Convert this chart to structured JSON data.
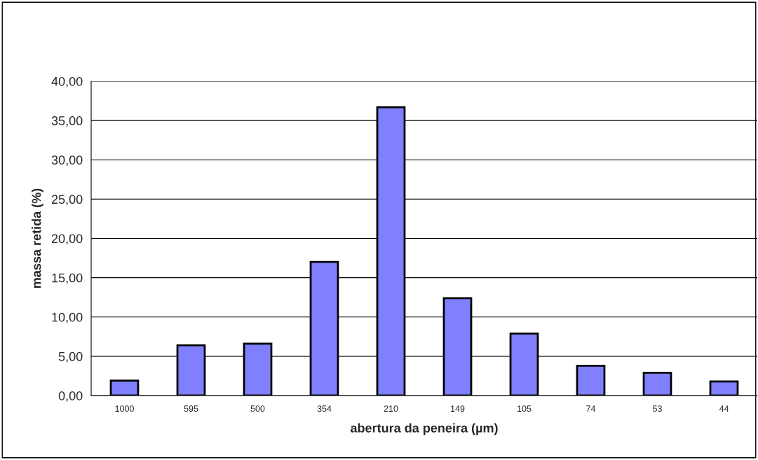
{
  "chart_data": {
    "type": "bar",
    "xlabel": "abertura da peneira (µm)",
    "ylabel": "massa retida (%)",
    "categories": [
      "1000",
      "595",
      "500",
      "354",
      "210",
      "149",
      "105",
      "74",
      "53",
      "44"
    ],
    "values": [
      1.9,
      6.4,
      6.6,
      17.0,
      36.7,
      12.4,
      7.9,
      3.8,
      2.9,
      1.8
    ],
    "color": "#8080ff",
    "ylim": [
      0,
      40
    ],
    "yticks": [
      {
        "value": 0,
        "label": "0,00"
      },
      {
        "value": 5,
        "label": "5,00"
      },
      {
        "value": 10,
        "label": "10,00"
      },
      {
        "value": 15,
        "label": "15,00"
      },
      {
        "value": 20,
        "label": "20,00"
      },
      {
        "value": 25,
        "label": "25,00"
      },
      {
        "value": 30,
        "label": "30,00"
      },
      {
        "value": 35,
        "label": "35,00"
      },
      {
        "value": 40,
        "label": "40,00"
      }
    ],
    "grid": "y",
    "legend": false
  }
}
